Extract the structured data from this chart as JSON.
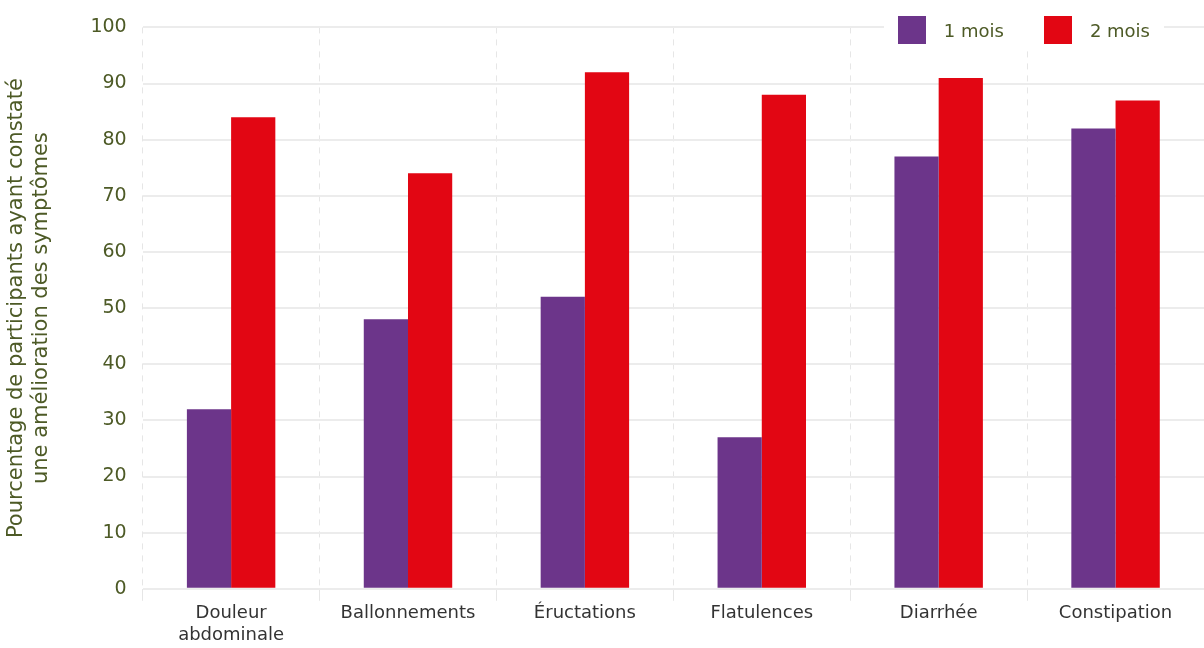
{
  "chart_data": {
    "type": "bar",
    "ylabel": "Pourcentage de participants ayant constaté\nune amélioration des symptômes",
    "categories": [
      "Douleur abdominale",
      "Ballonnements",
      "Éructations",
      "Flatulences",
      "Diarrhée",
      "Constipation"
    ],
    "series": [
      {
        "name": "1 mois",
        "color": "#6c358a",
        "values": [
          32,
          48,
          52,
          27,
          77,
          82
        ]
      },
      {
        "name": "2 mois",
        "color": "#e20613",
        "values": [
          84,
          74,
          92,
          88,
          91,
          87
        ]
      }
    ],
    "ylim": [
      0,
      100
    ],
    "yticks": [
      0,
      10,
      20,
      30,
      40,
      50,
      60,
      70,
      80,
      90,
      100
    ],
    "grid": true,
    "legend": "top right"
  }
}
